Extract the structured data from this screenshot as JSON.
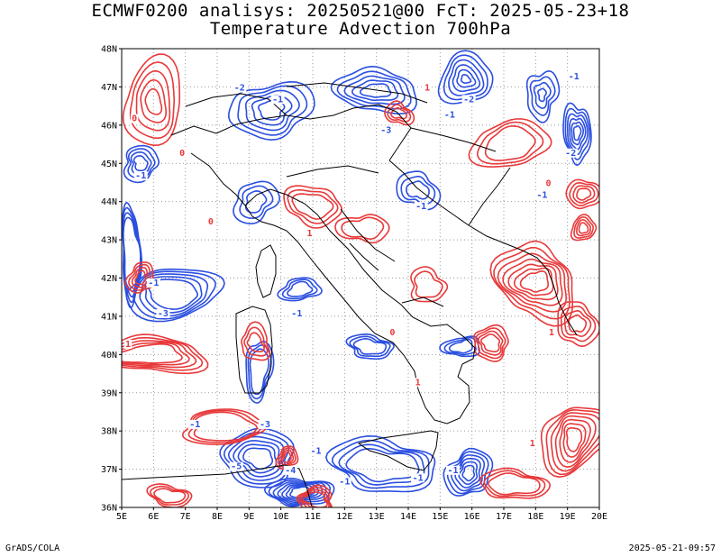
{
  "header": {
    "line1": "ECMWF0200 analisys: 20250521@00 FcT: 2025-05-23+18",
    "line2": "Temperature Advection 700hPa"
  },
  "footer": {
    "left": "GrADS/COLA",
    "right": "2025-05-21-09:57"
  },
  "map": {
    "lat_labels": [
      "48N",
      "47N",
      "46N",
      "45N",
      "44N",
      "43N",
      "42N",
      "41N",
      "40N",
      "39N",
      "38N",
      "37N",
      "36N"
    ],
    "lon_labels": [
      "5E",
      "6E",
      "7E",
      "8E",
      "9E",
      "10E",
      "11E",
      "12E",
      "13E",
      "14E",
      "15E",
      "16E",
      "17E",
      "18E",
      "19E",
      "20E"
    ],
    "lat_range": [
      36,
      48
    ],
    "lon_range": [
      5,
      20
    ],
    "grid": "dotted",
    "colors": {
      "positive": "#e8393a",
      "negative": "#2b4fe0",
      "boundary": "#000000"
    },
    "contour_labels": [
      {
        "text": "-1",
        "lon": 9.9,
        "lat": 46.6,
        "sign": "neg"
      },
      {
        "text": "-2",
        "lon": 8.7,
        "lat": 46.9,
        "sign": "neg"
      },
      {
        "text": "-3",
        "lon": 13.3,
        "lat": 45.8,
        "sign": "neg"
      },
      {
        "text": "-2",
        "lon": 15.9,
        "lat": 46.6,
        "sign": "neg"
      },
      {
        "text": "-1",
        "lon": 15.3,
        "lat": 46.2,
        "sign": "neg"
      },
      {
        "text": "-1",
        "lon": 19.2,
        "lat": 47.2,
        "sign": "neg"
      },
      {
        "text": "-2",
        "lon": 19.1,
        "lat": 45.2,
        "sign": "neg"
      },
      {
        "text": "-1",
        "lon": 5.6,
        "lat": 44.6,
        "sign": "neg"
      },
      {
        "text": "-1",
        "lon": 14.4,
        "lat": 43.8,
        "sign": "neg"
      },
      {
        "text": "-1",
        "lon": 18.2,
        "lat": 44.1,
        "sign": "neg"
      },
      {
        "text": "-1",
        "lon": 6.0,
        "lat": 41.8,
        "sign": "neg"
      },
      {
        "text": "-3",
        "lon": 6.3,
        "lat": 41.0,
        "sign": "neg"
      },
      {
        "text": "-1",
        "lon": 10.5,
        "lat": 41.0,
        "sign": "neg"
      },
      {
        "text": "-1",
        "lon": 7.3,
        "lat": 38.1,
        "sign": "neg"
      },
      {
        "text": "-3",
        "lon": 9.5,
        "lat": 38.1,
        "sign": "neg"
      },
      {
        "text": "-5",
        "lon": 8.6,
        "lat": 37.0,
        "sign": "neg"
      },
      {
        "text": "-4",
        "lon": 10.3,
        "lat": 36.9,
        "sign": "neg"
      },
      {
        "text": "-1",
        "lon": 12.0,
        "lat": 36.6,
        "sign": "neg"
      },
      {
        "text": "-1",
        "lon": 14.3,
        "lat": 36.7,
        "sign": "neg"
      },
      {
        "text": "-1",
        "lon": 15.4,
        "lat": 36.9,
        "sign": "neg"
      },
      {
        "text": "-1",
        "lon": 11.1,
        "lat": 37.4,
        "sign": "neg"
      },
      {
        "text": "1",
        "lon": 5.2,
        "lat": 40.2,
        "sign": "pos"
      },
      {
        "text": "0",
        "lon": 6.9,
        "lat": 45.2,
        "sign": "pos"
      },
      {
        "text": "0",
        "lon": 7.8,
        "lat": 43.4,
        "sign": "pos"
      },
      {
        "text": "1",
        "lon": 10.9,
        "lat": 43.1,
        "sign": "pos"
      },
      {
        "text": "0",
        "lon": 13.5,
        "lat": 40.5,
        "sign": "pos"
      },
      {
        "text": "1",
        "lon": 14.3,
        "lat": 39.2,
        "sign": "pos"
      },
      {
        "text": "1",
        "lon": 18.5,
        "lat": 40.5,
        "sign": "pos"
      },
      {
        "text": "0",
        "lon": 18.4,
        "lat": 44.4,
        "sign": "pos"
      },
      {
        "text": "1",
        "lon": 17.9,
        "lat": 37.6,
        "sign": "pos"
      },
      {
        "text": "1",
        "lon": 14.6,
        "lat": 46.9,
        "sign": "pos"
      },
      {
        "text": "0",
        "lon": 5.4,
        "lat": 46.1,
        "sign": "pos"
      }
    ],
    "contour_sets": [
      {
        "sign": "neg",
        "lon": 9.7,
        "lat": 46.4,
        "rx": 1.3,
        "ry": 0.7,
        "n": 5,
        "step": 0.22
      },
      {
        "sign": "neg",
        "lon": 13.0,
        "lat": 46.9,
        "rx": 1.2,
        "ry": 0.6,
        "n": 5,
        "step": 0.2
      },
      {
        "sign": "neg",
        "lon": 15.8,
        "lat": 47.2,
        "rx": 0.9,
        "ry": 0.6,
        "n": 7,
        "step": 0.15
      },
      {
        "sign": "neg",
        "lon": 18.2,
        "lat": 46.8,
        "rx": 0.5,
        "ry": 0.6,
        "n": 4,
        "step": 0.15
      },
      {
        "sign": "neg",
        "lon": 19.3,
        "lat": 45.8,
        "rx": 0.4,
        "ry": 0.8,
        "n": 6,
        "step": 0.12
      },
      {
        "sign": "neg",
        "lon": 5.6,
        "lat": 45.0,
        "rx": 0.6,
        "ry": 0.4,
        "n": 4,
        "step": 0.12
      },
      {
        "sign": "neg",
        "lon": 9.2,
        "lat": 44.0,
        "rx": 0.7,
        "ry": 0.5,
        "n": 3,
        "step": 0.18
      },
      {
        "sign": "neg",
        "lon": 14.3,
        "lat": 44.3,
        "rx": 0.6,
        "ry": 0.5,
        "n": 3,
        "step": 0.15
      },
      {
        "sign": "neg",
        "lon": 6.6,
        "lat": 41.6,
        "rx": 1.6,
        "ry": 0.6,
        "n": 5,
        "step": 0.18
      },
      {
        "sign": "neg",
        "lon": 10.6,
        "lat": 41.7,
        "rx": 0.6,
        "ry": 0.3,
        "n": 3,
        "step": 0.12
      },
      {
        "sign": "neg",
        "lon": 12.8,
        "lat": 40.2,
        "rx": 0.7,
        "ry": 0.3,
        "n": 3,
        "step": 0.12
      },
      {
        "sign": "neg",
        "lon": 9.3,
        "lat": 39.6,
        "rx": 0.4,
        "ry": 0.8,
        "n": 3,
        "step": 0.12
      },
      {
        "sign": "neg",
        "lon": 15.7,
        "lat": 40.2,
        "rx": 0.5,
        "ry": 0.3,
        "n": 3,
        "step": 0.1
      },
      {
        "sign": "neg",
        "lon": 9.3,
        "lat": 37.3,
        "rx": 1.2,
        "ry": 0.7,
        "n": 6,
        "step": 0.15
      },
      {
        "sign": "neg",
        "lon": 10.6,
        "lat": 36.4,
        "rx": 0.9,
        "ry": 0.4,
        "n": 7,
        "step": 0.1
      },
      {
        "sign": "neg",
        "lon": 13.2,
        "lat": 37.1,
        "rx": 1.6,
        "ry": 0.7,
        "n": 4,
        "step": 0.2
      },
      {
        "sign": "neg",
        "lon": 15.9,
        "lat": 36.9,
        "rx": 0.7,
        "ry": 0.6,
        "n": 6,
        "step": 0.1
      },
      {
        "sign": "neg",
        "lon": 5.3,
        "lat": 42.6,
        "rx": 0.3,
        "ry": 1.2,
        "n": 4,
        "step": 0.08
      },
      {
        "sign": "pos",
        "lon": 6.0,
        "lat": 46.6,
        "rx": 1.0,
        "ry": 1.0,
        "n": 5,
        "step": 0.18
      },
      {
        "sign": "pos",
        "lon": 13.7,
        "lat": 46.3,
        "rx": 0.4,
        "ry": 0.3,
        "n": 3,
        "step": 0.1
      },
      {
        "sign": "pos",
        "lon": 17.2,
        "lat": 45.5,
        "rx": 1.2,
        "ry": 0.6,
        "n": 3,
        "step": 0.2
      },
      {
        "sign": "pos",
        "lon": 19.5,
        "lat": 44.2,
        "rx": 0.5,
        "ry": 0.4,
        "n": 4,
        "step": 0.1
      },
      {
        "sign": "pos",
        "lon": 19.5,
        "lat": 43.3,
        "rx": 0.4,
        "ry": 0.3,
        "n": 4,
        "step": 0.08
      },
      {
        "sign": "pos",
        "lon": 18.0,
        "lat": 41.9,
        "rx": 1.2,
        "ry": 1.0,
        "n": 7,
        "step": 0.14
      },
      {
        "sign": "pos",
        "lon": 16.6,
        "lat": 40.3,
        "rx": 0.6,
        "ry": 0.4,
        "n": 4,
        "step": 0.1
      },
      {
        "sign": "pos",
        "lon": 19.3,
        "lat": 40.8,
        "rx": 0.6,
        "ry": 0.6,
        "n": 4,
        "step": 0.12
      },
      {
        "sign": "pos",
        "lon": 19.2,
        "lat": 37.8,
        "rx": 1.0,
        "ry": 0.9,
        "n": 7,
        "step": 0.12
      },
      {
        "sign": "pos",
        "lon": 5.9,
        "lat": 40.0,
        "rx": 1.6,
        "ry": 0.5,
        "n": 5,
        "step": 0.18
      },
      {
        "sign": "pos",
        "lon": 5.6,
        "lat": 42.0,
        "rx": 0.4,
        "ry": 0.4,
        "n": 4,
        "step": 0.08
      },
      {
        "sign": "pos",
        "lon": 9.2,
        "lat": 40.3,
        "rx": 0.5,
        "ry": 0.4,
        "n": 3,
        "step": 0.12
      },
      {
        "sign": "pos",
        "lon": 10.2,
        "lat": 37.3,
        "rx": 0.3,
        "ry": 0.3,
        "n": 4,
        "step": 0.06
      },
      {
        "sign": "pos",
        "lon": 11.1,
        "lat": 36.2,
        "rx": 0.6,
        "ry": 0.3,
        "n": 4,
        "step": 0.08
      },
      {
        "sign": "pos",
        "lon": 6.5,
        "lat": 36.3,
        "rx": 0.6,
        "ry": 0.3,
        "n": 3,
        "step": 0.1
      },
      {
        "sign": "pos",
        "lon": 8.2,
        "lat": 38.1,
        "rx": 1.4,
        "ry": 0.4,
        "n": 3,
        "step": 0.14
      },
      {
        "sign": "pos",
        "lon": 11.0,
        "lat": 43.9,
        "rx": 0.9,
        "ry": 0.5,
        "n": 3,
        "step": 0.16
      },
      {
        "sign": "pos",
        "lon": 12.6,
        "lat": 43.3,
        "rx": 0.7,
        "ry": 0.4,
        "n": 2,
        "step": 0.16
      },
      {
        "sign": "pos",
        "lon": 14.6,
        "lat": 41.8,
        "rx": 0.6,
        "ry": 0.4,
        "n": 2,
        "step": 0.15
      },
      {
        "sign": "pos",
        "lon": 17.3,
        "lat": 36.6,
        "rx": 1.0,
        "ry": 0.4,
        "n": 3,
        "step": 0.14
      }
    ]
  }
}
